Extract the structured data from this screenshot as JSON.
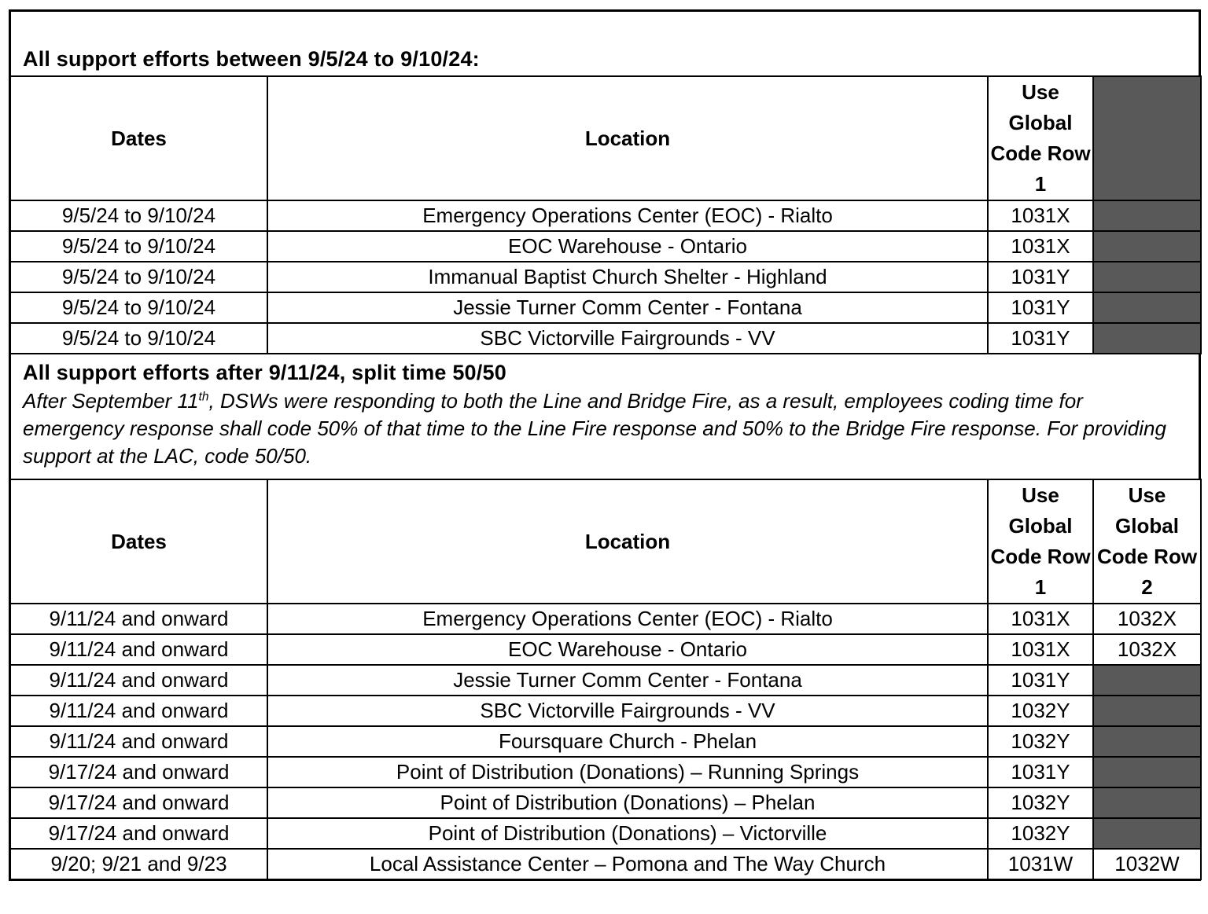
{
  "colors": {
    "shaded_cell": "#595959",
    "border": "#000000",
    "background": "#ffffff"
  },
  "section1": {
    "title": "All support efforts between 9/5/24 to 9/10/24:",
    "table": {
      "headers": {
        "dates": "Dates",
        "location": "Location",
        "code1": "Use Global Code Row 1"
      },
      "rows": [
        {
          "dates": "9/5/24 to 9/10/24",
          "location": "Emergency Operations Center (EOC) - Rialto",
          "code1": "1031X"
        },
        {
          "dates": "9/5/24 to 9/10/24",
          "location": "EOC Warehouse - Ontario",
          "code1": "1031X"
        },
        {
          "dates": "9/5/24 to 9/10/24",
          "location": "Immanual Baptist Church Shelter - Highland",
          "code1": "1031Y"
        },
        {
          "dates": "9/5/24 to 9/10/24",
          "location": "Jessie Turner Comm Center - Fontana",
          "code1": "1031Y"
        },
        {
          "dates": "9/5/24 to 9/10/24",
          "location": "SBC Victorville Fairgrounds - VV",
          "code1": "1031Y"
        }
      ]
    }
  },
  "section2": {
    "title": "All support efforts after 9/11/24, split time 50/50",
    "note_part1": "After September 11",
    "note_sup": "th",
    "note_part2": ", DSWs were responding to both the Line and Bridge Fire, as a result, employees coding time for emergency response shall code 50% of that time to the Line Fire response and 50% to the Bridge Fire response. For providing support at the LAC, code 50/50.",
    "table": {
      "headers": {
        "dates": "Dates",
        "location": "Location",
        "code1": "Use Global Code Row 1",
        "code2": "Use Global Code Row 2"
      },
      "rows": [
        {
          "dates": "9/11/24 and onward",
          "location": "Emergency Operations Center (EOC) - Rialto",
          "code1": "1031X",
          "code2": "1032X",
          "code2_shaded": false
        },
        {
          "dates": "9/11/24 and onward",
          "location": "EOC Warehouse - Ontario",
          "code1": "1031X",
          "code2": "1032X",
          "code2_shaded": false
        },
        {
          "dates": "9/11/24 and onward",
          "location": "Jessie Turner Comm Center - Fontana",
          "code1": "1031Y",
          "code2": "",
          "code2_shaded": true
        },
        {
          "dates": "9/11/24 and onward",
          "location": "SBC Victorville Fairgrounds - VV",
          "code1": "1032Y",
          "code2": "",
          "code2_shaded": true
        },
        {
          "dates": "9/11/24 and onward",
          "location": "Foursquare Church - Phelan",
          "code1": "1032Y",
          "code2": "",
          "code2_shaded": true
        },
        {
          "dates": "9/17/24 and onward",
          "location": "Point of Distribution (Donations) – Running Springs",
          "code1": "1031Y",
          "code2": "",
          "code2_shaded": true
        },
        {
          "dates": "9/17/24 and onward",
          "location": "Point of Distribution (Donations) – Phelan",
          "code1": "1032Y",
          "code2": "",
          "code2_shaded": true
        },
        {
          "dates": "9/17/24 and onward",
          "location": "Point of Distribution (Donations) – Victorville",
          "code1": "1032Y",
          "code2": "",
          "code2_shaded": true
        },
        {
          "dates": "9/20; 9/21 and 9/23",
          "location": "Local Assistance Center – Pomona and The Way Church",
          "code1": "1031W",
          "code2": "1032W",
          "code2_shaded": false
        }
      ]
    }
  }
}
